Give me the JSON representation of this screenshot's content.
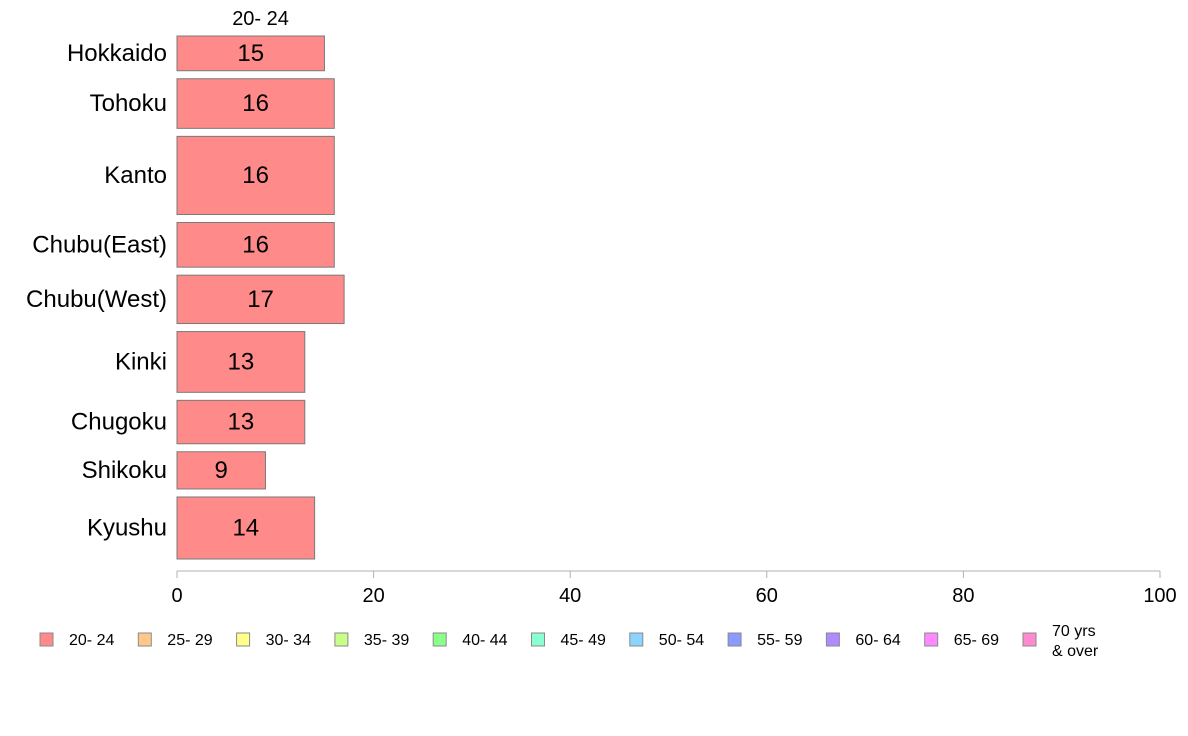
{
  "chart_data": {
    "type": "bar",
    "orientation": "horizontal",
    "stacked": true,
    "series_header": "20- 24",
    "categories": [
      "Hokkaido",
      "Tohoku",
      "Kanto",
      "Chubu(East)",
      "Chubu(West)",
      "Kinki",
      "Chugoku",
      "Shikoku",
      "Kyushu"
    ],
    "series": [
      {
        "name": "20- 24",
        "values": [
          15,
          16,
          16,
          16,
          17,
          13,
          13,
          9,
          14
        ],
        "labels": [
          "15",
          "16",
          "16",
          "16",
          "17",
          "13",
          "13",
          "9",
          "14"
        ],
        "color": "#ff8a8a"
      }
    ],
    "bar_weights": [
      0.56,
      0.8,
      1.26,
      0.72,
      0.78,
      0.98,
      0.7,
      0.6,
      1.0
    ],
    "xlim": [
      0,
      100
    ],
    "xticks": [
      "0",
      "20",
      "40",
      "60",
      "80",
      "100"
    ],
    "xlabel": "",
    "ylabel": "",
    "grid": false,
    "legend_position": "bottom",
    "legend": [
      {
        "label": "20- 24",
        "color": "#ff8a8a"
      },
      {
        "label": "25- 29",
        "color": "#ffc88a"
      },
      {
        "label": "30- 34",
        "color": "#ffff8a"
      },
      {
        "label": "35- 39",
        "color": "#c8ff8a"
      },
      {
        "label": "40- 44",
        "color": "#8aff8a"
      },
      {
        "label": "45- 49",
        "color": "#8affd4"
      },
      {
        "label": "50- 54",
        "color": "#8ad4ff"
      },
      {
        "label": "55- 59",
        "color": "#8a9aff"
      },
      {
        "label": "60- 64",
        "color": "#b08aff"
      },
      {
        "label": "65- 69",
        "color": "#ff8aff"
      },
      {
        "label": "70 yrs\n& over",
        "color": "#ff8ad0"
      }
    ]
  }
}
